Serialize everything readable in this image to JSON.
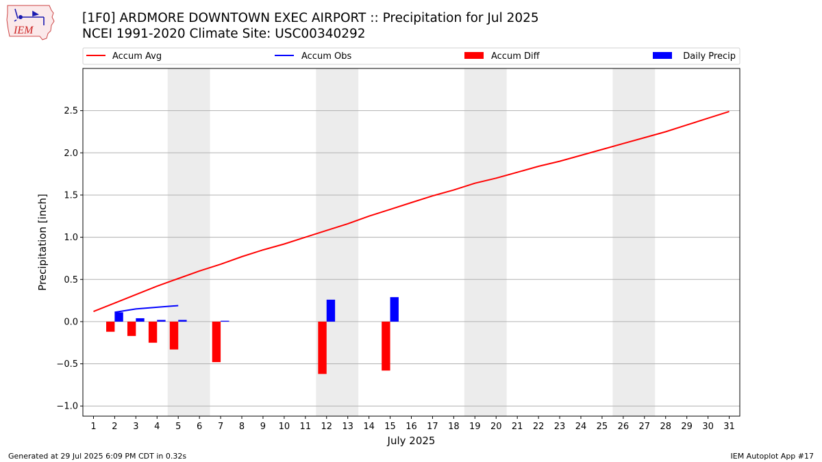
{
  "header": {
    "title_line1": "[1F0] ARDMORE DOWNTOWN EXEC AIRPORT :: Precipitation for Jul 2025",
    "title_line2": "NCEI 1991-2020 Climate Site: USC00340292"
  },
  "logo": {
    "text": "IEM",
    "icon": "iowa-state-weather-logo"
  },
  "footer": {
    "generated": "Generated at 29 Jul 2025 6:09 PM CDT in 0.32s",
    "app": "IEM Autoplot App #17"
  },
  "chart_data": {
    "type": "bar",
    "xlabel": "July 2025",
    "ylabel": "Precipitation [inch]",
    "xlim": [
      0.5,
      31.5
    ],
    "ylim": [
      -1.12,
      3.0
    ],
    "yticks": [
      -1.0,
      -0.5,
      0.0,
      0.5,
      1.0,
      1.5,
      2.0,
      2.5
    ],
    "ytick_labels": [
      "−1.0",
      "−0.5",
      "0.0",
      "0.5",
      "1.0",
      "1.5",
      "2.0",
      "2.5"
    ],
    "days": [
      1,
      2,
      3,
      4,
      5,
      6,
      7,
      8,
      9,
      10,
      11,
      12,
      13,
      14,
      15,
      16,
      17,
      18,
      19,
      20,
      21,
      22,
      23,
      24,
      25,
      26,
      27,
      28,
      29,
      30,
      31
    ],
    "grid": "horizontal",
    "legend_placement": "top, above plot",
    "weekend_shading": [
      [
        4.5,
        6.5
      ],
      [
        11.5,
        13.5
      ],
      [
        18.5,
        20.5
      ],
      [
        25.5,
        27.5
      ]
    ],
    "series": [
      {
        "name": "Accum Avg",
        "kind": "line",
        "color": "#ff0000",
        "x": [
          1,
          2,
          3,
          4,
          5,
          6,
          7,
          8,
          9,
          10,
          11,
          12,
          13,
          14,
          15,
          16,
          17,
          18,
          19,
          20,
          21,
          22,
          23,
          24,
          25,
          26,
          27,
          28,
          29,
          30,
          31
        ],
        "values": [
          0.12,
          0.22,
          0.32,
          0.42,
          0.51,
          0.6,
          0.68,
          0.77,
          0.85,
          0.92,
          1.0,
          1.08,
          1.16,
          1.25,
          1.33,
          1.41,
          1.49,
          1.56,
          1.64,
          1.7,
          1.77,
          1.84,
          1.9,
          1.97,
          2.04,
          2.11,
          2.18,
          2.25,
          2.33,
          2.41,
          2.49
        ]
      },
      {
        "name": "Accum Obs",
        "kind": "line",
        "color": "#0000ff",
        "x": [
          2,
          3,
          4,
          5
        ],
        "values": [
          0.11,
          0.15,
          0.17,
          0.19
        ]
      },
      {
        "name": "Accum Diff",
        "kind": "bar",
        "color": "#ff0000",
        "offset": -0.2,
        "x": [
          2,
          3,
          4,
          5,
          7,
          12,
          15
        ],
        "values": [
          -0.12,
          -0.17,
          -0.25,
          -0.33,
          -0.48,
          -0.62,
          -0.58
        ]
      },
      {
        "name": "Daily Precip",
        "kind": "bar",
        "color": "#0000ff",
        "offset": 0.2,
        "x": [
          2,
          3,
          4,
          5,
          7,
          12,
          15
        ],
        "values": [
          0.11,
          0.04,
          0.02,
          0.02,
          0.01,
          0.26,
          0.29
        ]
      }
    ]
  }
}
